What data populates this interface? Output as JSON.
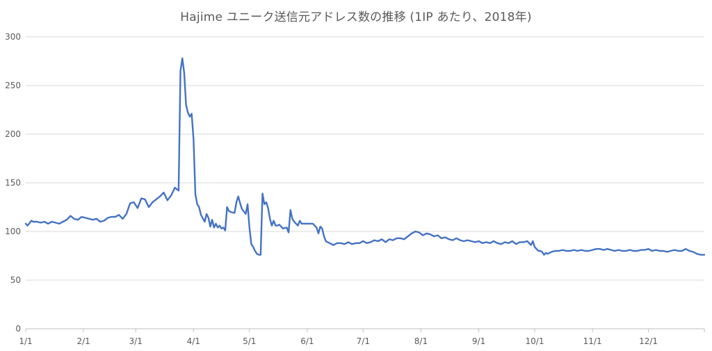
{
  "chart_data": {
    "type": "line",
    "title": "Hajime ユニーク送信元アドレス数の推移 (1IP あたり、2018年)",
    "xlabel": "",
    "ylabel": "",
    "ylim": [
      0,
      300
    ],
    "y_ticks": [
      0,
      50,
      100,
      150,
      200,
      250,
      300
    ],
    "x_ticks": [
      {
        "label": "1/1",
        "day": 0
      },
      {
        "label": "2/1",
        "day": 31
      },
      {
        "label": "3/1",
        "day": 59
      },
      {
        "label": "4/1",
        "day": 90
      },
      {
        "label": "5/1",
        "day": 120
      },
      {
        "label": "6/1",
        "day": 151
      },
      {
        "label": "7/1",
        "day": 181
      },
      {
        "label": "8/1",
        "day": 212
      },
      {
        "label": "9/1",
        "day": 243
      },
      {
        "label": "10/1",
        "day": 273
      },
      {
        "label": "11/1",
        "day": 304
      },
      {
        "label": "12/1",
        "day": 334
      }
    ],
    "x_range_days": [
      0,
      364
    ],
    "grid": "horizontal",
    "line_color": "#4472C4",
    "series": [
      {
        "name": "",
        "points": [
          [
            0,
            108
          ],
          [
            1,
            106
          ],
          [
            3,
            111
          ],
          [
            4,
            110
          ],
          [
            6,
            110
          ],
          [
            8,
            109
          ],
          [
            10,
            110
          ],
          [
            12,
            108
          ],
          [
            14,
            110
          ],
          [
            16,
            109
          ],
          [
            18,
            108
          ],
          [
            20,
            110
          ],
          [
            22,
            112
          ],
          [
            24,
            116
          ],
          [
            26,
            113
          ],
          [
            28,
            112
          ],
          [
            30,
            115
          ],
          [
            32,
            114
          ],
          [
            34,
            113
          ],
          [
            36,
            112
          ],
          [
            38,
            113
          ],
          [
            40,
            110
          ],
          [
            42,
            111
          ],
          [
            44,
            114
          ],
          [
            46,
            115
          ],
          [
            48,
            115
          ],
          [
            50,
            117
          ],
          [
            52,
            113
          ],
          [
            54,
            118
          ],
          [
            56,
            129
          ],
          [
            58,
            130
          ],
          [
            60,
            124
          ],
          [
            62,
            134
          ],
          [
            64,
            133
          ],
          [
            66,
            125
          ],
          [
            68,
            130
          ],
          [
            70,
            133
          ],
          [
            72,
            136
          ],
          [
            74,
            140
          ],
          [
            76,
            132
          ],
          [
            78,
            137
          ],
          [
            80,
            145
          ],
          [
            82,
            142
          ],
          [
            83,
            265
          ],
          [
            84,
            278
          ],
          [
            85,
            263
          ],
          [
            86,
            230
          ],
          [
            87,
            222
          ],
          [
            88,
            218
          ],
          [
            89,
            221
          ],
          [
            90,
            195
          ],
          [
            91,
            138
          ],
          [
            92,
            128
          ],
          [
            93,
            125
          ],
          [
            94,
            117
          ],
          [
            96,
            110
          ],
          [
            97,
            118
          ],
          [
            98,
            114
          ],
          [
            99,
            105
          ],
          [
            100,
            112
          ],
          [
            101,
            104
          ],
          [
            102,
            108
          ],
          [
            103,
            104
          ],
          [
            104,
            106
          ],
          [
            105,
            103
          ],
          [
            106,
            104
          ],
          [
            107,
            101
          ],
          [
            108,
            125
          ],
          [
            109,
            121
          ],
          [
            110,
            120
          ],
          [
            112,
            119
          ],
          [
            113,
            130
          ],
          [
            114,
            136
          ],
          [
            115,
            129
          ],
          [
            116,
            123
          ],
          [
            118,
            118
          ],
          [
            119,
            128
          ],
          [
            120,
            104
          ],
          [
            121,
            87
          ],
          [
            122,
            84
          ],
          [
            123,
            80
          ],
          [
            124,
            77
          ],
          [
            125,
            76
          ],
          [
            126,
            76
          ],
          [
            127,
            139
          ],
          [
            128,
            128
          ],
          [
            129,
            130
          ],
          [
            130,
            124
          ],
          [
            131,
            113
          ],
          [
            132,
            106
          ],
          [
            133,
            111
          ],
          [
            134,
            106
          ],
          [
            135,
            106
          ],
          [
            136,
            107
          ],
          [
            138,
            103
          ],
          [
            140,
            104
          ],
          [
            141,
            99
          ],
          [
            142,
            122
          ],
          [
            143,
            113
          ],
          [
            144,
            110
          ],
          [
            146,
            106
          ],
          [
            147,
            111
          ],
          [
            148,
            108
          ],
          [
            150,
            108
          ],
          [
            152,
            108
          ],
          [
            154,
            108
          ],
          [
            156,
            104
          ],
          [
            157,
            98
          ],
          [
            158,
            105
          ],
          [
            159,
            103
          ],
          [
            160,
            95
          ],
          [
            161,
            90
          ],
          [
            163,
            88
          ],
          [
            165,
            86
          ],
          [
            167,
            88
          ],
          [
            169,
            88
          ],
          [
            171,
            87
          ],
          [
            173,
            89
          ],
          [
            175,
            87
          ],
          [
            177,
            88
          ],
          [
            179,
            88
          ],
          [
            181,
            90
          ],
          [
            183,
            88
          ],
          [
            185,
            89
          ],
          [
            187,
            91
          ],
          [
            189,
            90
          ],
          [
            191,
            92
          ],
          [
            193,
            89
          ],
          [
            195,
            92
          ],
          [
            197,
            91
          ],
          [
            199,
            93
          ],
          [
            201,
            93
          ],
          [
            203,
            92
          ],
          [
            205,
            95
          ],
          [
            207,
            98
          ],
          [
            209,
            100
          ],
          [
            211,
            99
          ],
          [
            213,
            96
          ],
          [
            215,
            98
          ],
          [
            217,
            97
          ],
          [
            219,
            95
          ],
          [
            221,
            96
          ],
          [
            223,
            93
          ],
          [
            225,
            94
          ],
          [
            227,
            92
          ],
          [
            229,
            91
          ],
          [
            231,
            93
          ],
          [
            233,
            91
          ],
          [
            235,
            90
          ],
          [
            237,
            91
          ],
          [
            239,
            90
          ],
          [
            241,
            89
          ],
          [
            243,
            90
          ],
          [
            245,
            88
          ],
          [
            247,
            89
          ],
          [
            249,
            88
          ],
          [
            251,
            90
          ],
          [
            253,
            88
          ],
          [
            255,
            87
          ],
          [
            257,
            89
          ],
          [
            259,
            88
          ],
          [
            261,
            90
          ],
          [
            263,
            87
          ],
          [
            265,
            89
          ],
          [
            267,
            89
          ],
          [
            269,
            90
          ],
          [
            271,
            86
          ],
          [
            272,
            90
          ],
          [
            273,
            84
          ],
          [
            274,
            82
          ],
          [
            275,
            80
          ],
          [
            276,
            80
          ],
          [
            277,
            79
          ],
          [
            278,
            76
          ],
          [
            279,
            78
          ],
          [
            280,
            77
          ],
          [
            282,
            79
          ],
          [
            284,
            80
          ],
          [
            286,
            80
          ],
          [
            288,
            81
          ],
          [
            290,
            80
          ],
          [
            292,
            80
          ],
          [
            294,
            81
          ],
          [
            296,
            80
          ],
          [
            298,
            81
          ],
          [
            300,
            80
          ],
          [
            302,
            80
          ],
          [
            304,
            81
          ],
          [
            306,
            82
          ],
          [
            308,
            82
          ],
          [
            310,
            81
          ],
          [
            312,
            82
          ],
          [
            314,
            81
          ],
          [
            316,
            80
          ],
          [
            318,
            81
          ],
          [
            320,
            80
          ],
          [
            322,
            80
          ],
          [
            324,
            81
          ],
          [
            326,
            80
          ],
          [
            328,
            80
          ],
          [
            330,
            81
          ],
          [
            332,
            81
          ],
          [
            334,
            82
          ],
          [
            336,
            80
          ],
          [
            338,
            81
          ],
          [
            340,
            80
          ],
          [
            342,
            80
          ],
          [
            344,
            79
          ],
          [
            346,
            80
          ],
          [
            348,
            81
          ],
          [
            350,
            80
          ],
          [
            352,
            80
          ],
          [
            354,
            82
          ],
          [
            356,
            80
          ],
          [
            358,
            79
          ],
          [
            360,
            77
          ],
          [
            362,
            76
          ],
          [
            364,
            76
          ]
        ]
      }
    ]
  }
}
